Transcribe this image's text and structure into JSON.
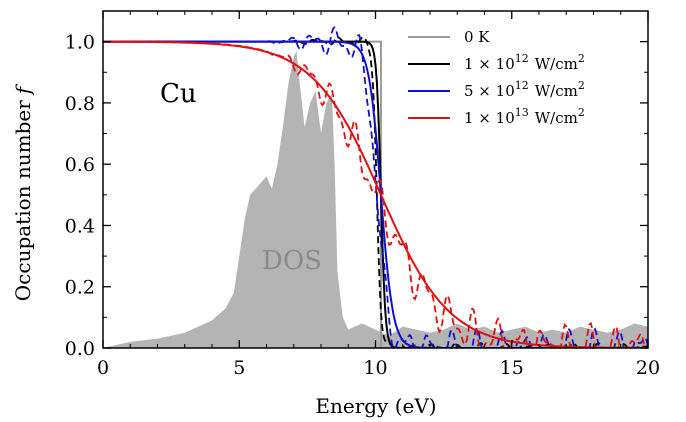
{
  "chart_data": {
    "type": "line",
    "title": "",
    "xlabel": "Energy (eV)",
    "ylabel": "Occupation number",
    "ylabel_symbol": "f",
    "xlim": [
      0,
      20
    ],
    "ylim": [
      0,
      1.1
    ],
    "xticks": [
      0,
      5,
      10,
      15,
      20
    ],
    "yticks": [
      0.0,
      0.2,
      0.4,
      0.6,
      0.8,
      1.0
    ],
    "xtick_labels": [
      "0",
      "5",
      "10",
      "15",
      "20"
    ],
    "ytick_labels": [
      "0.0",
      "0.2",
      "0.4",
      "0.6",
      "0.8",
      "1.0"
    ],
    "legend_position": "top-right",
    "material_label": "Cu",
    "dos_label": "DOS",
    "fermi_energy": 10.2,
    "dos": {
      "color": "#b4b4b4",
      "x": [
        0,
        0.5,
        1,
        1.5,
        2,
        2.5,
        3,
        3.5,
        4,
        4.5,
        4.8,
        5.0,
        5.2,
        5.4,
        5.6,
        5.8,
        6.0,
        6.2,
        6.4,
        6.6,
        6.8,
        7.0,
        7.1,
        7.2,
        7.4,
        7.6,
        7.8,
        8.0,
        8.2,
        8.4,
        8.5,
        8.6,
        8.8,
        9.0,
        9.5,
        10,
        10.5,
        11,
        11.5,
        12,
        12.5,
        13,
        13.5,
        14,
        14.5,
        15,
        15.5,
        16,
        16.5,
        17,
        17.5,
        18,
        18.5,
        19,
        19.5,
        20
      ],
      "values": [
        0.0,
        0.01,
        0.02,
        0.025,
        0.03,
        0.04,
        0.05,
        0.07,
        0.09,
        0.13,
        0.18,
        0.3,
        0.42,
        0.5,
        0.52,
        0.54,
        0.56,
        0.52,
        0.6,
        0.72,
        0.86,
        0.95,
        0.97,
        0.88,
        0.72,
        0.8,
        0.84,
        0.7,
        0.8,
        0.83,
        0.6,
        0.25,
        0.1,
        0.06,
        0.08,
        0.06,
        0.04,
        0.07,
        0.06,
        0.05,
        0.06,
        0.08,
        0.06,
        0.07,
        0.05,
        0.06,
        0.07,
        0.05,
        0.06,
        0.05,
        0.07,
        0.06,
        0.05,
        0.06,
        0.08,
        0.07
      ]
    },
    "legend": [
      {
        "label_main": "0 K",
        "label_sup": "",
        "label_unit": "",
        "label_unit_sup": "",
        "color": "#9a9a9a"
      },
      {
        "label_main": "1 × 10",
        "label_sup": "12",
        "label_unit": "W/cm",
        "label_unit_sup": "2",
        "color": "#000000"
      },
      {
        "label_main": "5 × 10",
        "label_sup": "12",
        "label_unit": "W/cm",
        "label_unit_sup": "2",
        "color": "#1010d0"
      },
      {
        "label_main": "1 × 10",
        "label_sup": "13",
        "label_unit": "W/cm",
        "label_unit_sup": "2",
        "color": "#e01010"
      }
    ],
    "series": [
      {
        "label_index": 0,
        "color": "#9a9a9a",
        "kT": 0.0,
        "dashed_noise": 0.0
      },
      {
        "label_index": 1,
        "color": "#000000",
        "kT": 0.08,
        "dashed_noise": 0.01
      },
      {
        "label_index": 2,
        "color": "#1010d0",
        "kT": 0.22,
        "dashed_noise": 0.04
      },
      {
        "label_index": 3,
        "color": "#e01010",
        "kT": 1.25,
        "dashed_noise": 0.05
      }
    ]
  }
}
